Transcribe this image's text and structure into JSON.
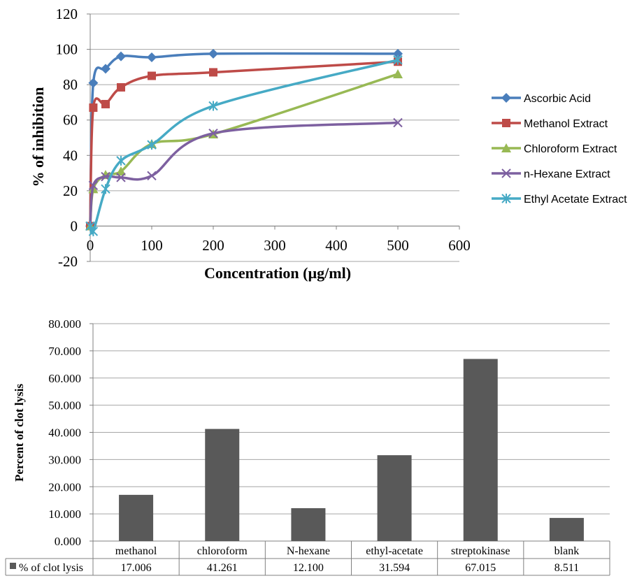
{
  "chart_data": [
    {
      "type": "line",
      "title": "",
      "xlabel": "Concentration (µg/ml)",
      "ylabel": "% of inhibition",
      "xlim": [
        0,
        600
      ],
      "ylim": [
        -20,
        120
      ],
      "xticks": [
        "0",
        "100",
        "200",
        "300",
        "400",
        "500",
        "600"
      ],
      "yticks": [
        "-20",
        "0",
        "20",
        "40",
        "60",
        "80",
        "100",
        "120"
      ],
      "grid": true,
      "legend_position": "right",
      "series": [
        {
          "name": "Ascorbic Acid",
          "color": "#4a7ebb",
          "marker": "diamond",
          "x": [
            0,
            5,
            25,
            50,
            100,
            200,
            500
          ],
          "y": [
            0,
            81,
            89,
            96,
            95.5,
            97.5,
            97.5
          ]
        },
        {
          "name": "Methanol Extract",
          "color": "#be4b48",
          "marker": "square",
          "x": [
            0,
            5,
            25,
            50,
            100,
            200,
            500
          ],
          "y": [
            0,
            67,
            69,
            78.5,
            85,
            87,
            93
          ]
        },
        {
          "name": "Chloroform Extract",
          "color": "#98b954",
          "marker": "triangle",
          "x": [
            0,
            5,
            25,
            50,
            100,
            200,
            500
          ],
          "y": [
            0,
            21,
            29,
            31,
            46.5,
            52,
            86
          ]
        },
        {
          "name": "n-Hexane Extract",
          "color": "#7d60a0",
          "marker": "x",
          "x": [
            0,
            5,
            25,
            50,
            100,
            200,
            500
          ],
          "y": [
            0,
            23,
            28,
            27.5,
            28.5,
            52.5,
            58.5
          ]
        },
        {
          "name": "Ethyl Acetate Extract",
          "color": "#46aac5",
          "marker": "star",
          "x": [
            0,
            5,
            25,
            50,
            100,
            200,
            500
          ],
          "y": [
            0,
            -3,
            21,
            37,
            46,
            68,
            94
          ]
        }
      ]
    },
    {
      "type": "bar",
      "title": "",
      "xlabel": "",
      "ylabel": "Percent of clot lysis",
      "ylim": [
        0,
        80
      ],
      "yticks": [
        "0.000",
        "10.000",
        "20.000",
        "30.000",
        "40.000",
        "50.000",
        "60.000",
        "70.000",
        "80.000"
      ],
      "grid": true,
      "bar_color": "#595959",
      "categories": [
        "methanol",
        "chloroform",
        "N-hexane",
        "ethyl-acetate",
        "streptokinase",
        "blank"
      ],
      "series": [
        {
          "name": "% of clot lysis",
          "values": [
            17.006,
            41.261,
            12.1,
            31.594,
            67.015,
            8.511
          ],
          "labels": [
            "17.006",
            "41.261",
            "12.100",
            "31.594",
            "67.015",
            "8.511"
          ]
        }
      ]
    }
  ]
}
